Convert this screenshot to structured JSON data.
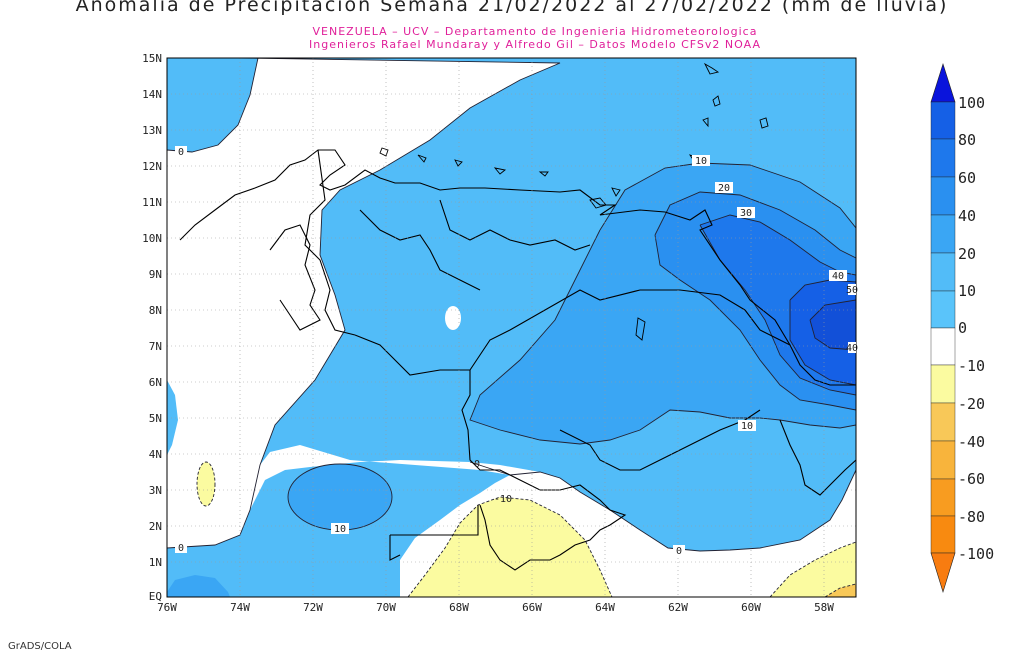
{
  "title": "Anomalia de Precipitacion Semana 21/02/2022 al 27/02/2022 (mm de lluvia)",
  "subtitle_line1": "VENEZUELA – UCV – Departamento de Ingenieria Hidrometeorologica",
  "subtitle_line2": "Ingenieros Rafael Mundaray y Alfredo Gil – Datos Modelo CFSv2 NOAA",
  "footer": "GrADS/COLA",
  "lat_labels": [
    "15N",
    "14N",
    "13N",
    "12N",
    "11N",
    "10N",
    "9N",
    "8N",
    "7N",
    "6N",
    "5N",
    "4N",
    "3N",
    "2N",
    "1N",
    "EQ"
  ],
  "lon_labels": [
    "76W",
    "74W",
    "72W",
    "70W",
    "68W",
    "66W",
    "64W",
    "62W",
    "60W",
    "58W"
  ],
  "contour_labels": [
    "0",
    "10",
    "20",
    "30",
    "40",
    "50",
    "40",
    "10",
    "0",
    "10",
    "-10",
    "0",
    "0"
  ],
  "colorbar": {
    "labels": [
      "100",
      "80",
      "60",
      "40",
      "20",
      "10",
      "0",
      "-10",
      "-20",
      "-40",
      "-60",
      "-80",
      "-100"
    ],
    "colors": {
      "gt100": "#0a14dc",
      "80_100": "#1560e6",
      "60_80": "#1e78ec",
      "40_60": "#2a90f0",
      "20_40": "#3aa6f4",
      "10_20": "#52bcf8",
      "0_10": "#ffffff",
      "m10_0": "#fbfba0",
      "m20_m10": "#f8c858",
      "m40_m20": "#f8b43c",
      "m60_m40": "#f89c20",
      "m80_m60": "#f88a10",
      "lt_m100": "#f87c10"
    }
  }
}
